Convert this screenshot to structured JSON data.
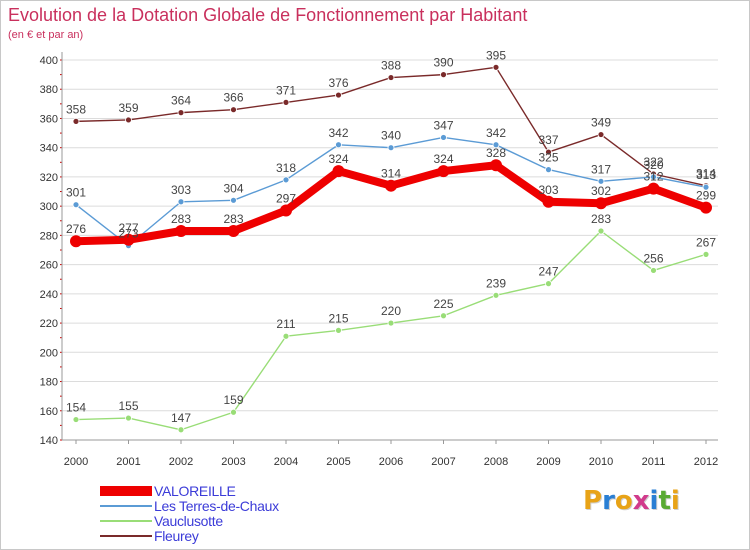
{
  "chart_data": {
    "type": "line",
    "title": "Evolution de la Dotation Globale de Fonctionnement par Habitant",
    "subtitle": "(en € et par an)",
    "categories": [
      "2000",
      "2001",
      "2002",
      "2003",
      "2004",
      "2005",
      "2006",
      "2007",
      "2008",
      "2009",
      "2010",
      "2011",
      "2012"
    ],
    "ylim": [
      140,
      400
    ],
    "yticks": [
      140,
      160,
      180,
      200,
      220,
      240,
      260,
      280,
      300,
      320,
      340,
      360,
      380,
      400
    ],
    "grid": true,
    "series": [
      {
        "name": "VALOREILLE",
        "color": "#ee0000",
        "values": [
          276,
          277,
          283,
          283,
          297,
          324,
          314,
          324,
          328,
          303,
          302,
          312,
          299
        ]
      },
      {
        "name": "Les Terres-de-Chaux",
        "color": "#5b9bd5",
        "values": [
          301,
          273,
          303,
          304,
          318,
          342,
          340,
          347,
          342,
          325,
          317,
          320,
          313
        ]
      },
      {
        "name": "Vauclusotte",
        "color": "#99dd77",
        "values": [
          154,
          155,
          147,
          159,
          211,
          215,
          220,
          225,
          239,
          247,
          283,
          256,
          267
        ]
      },
      {
        "name": "Fleurey",
        "color": "#7a2a2a",
        "values": [
          358,
          359,
          364,
          366,
          371,
          376,
          388,
          390,
          395,
          337,
          349,
          322,
          314
        ]
      }
    ]
  },
  "logo": {
    "text": "Proxiti",
    "colors": [
      "#e8a317",
      "#2a7fd4",
      "#e8a317",
      "#d13b8c",
      "#2a7fd4",
      "#5aaa33",
      "#e8a317"
    ]
  }
}
